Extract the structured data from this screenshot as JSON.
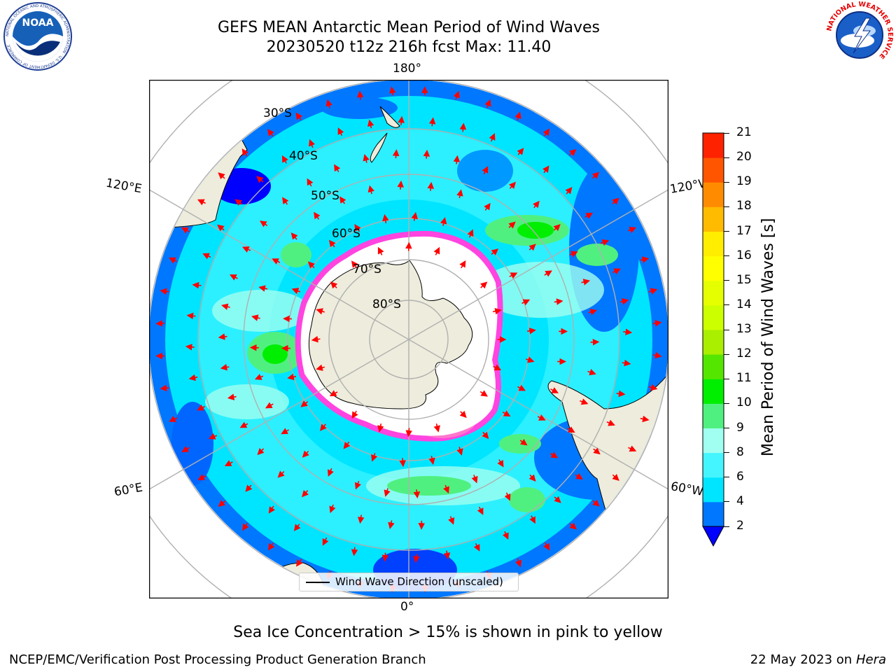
{
  "header": {
    "title_line1": "GEFS MEAN Antarctic Mean Period of Wind Waves",
    "title_line2": "20230520 t12z 216h fcst   Max: 11.40"
  },
  "logos": {
    "noaa_text": "NOAA",
    "noaa_ring": "NATIONAL OCEANIC AND ATMOSPHERIC ADMINISTRATION · U.S. DEPARTMENT OF COMMERCE",
    "nws_ring": "NATIONAL WEATHER SERVICE"
  },
  "map": {
    "longitude_labels": {
      "top": "180°",
      "bottom": "0°",
      "left_upper": "120°E",
      "left_lower": "60°E",
      "right_upper": "120°W",
      "right_lower": "60°W"
    },
    "latitude_labels": [
      "30°S",
      "40°S",
      "50°S",
      "60°S",
      "70°S",
      "80°S"
    ],
    "legend_label": "Wind Wave Direction (unscaled)",
    "colors": {
      "land": "#eeecdc",
      "ice": "#ffffff",
      "ice_edge": "#ff44e0",
      "vector": "#ff0000",
      "graticule": "#b0b0b0"
    }
  },
  "colorbar": {
    "label": "Mean Period of Wind Waves [s]",
    "ticks": [
      "2",
      "4",
      "6",
      "8",
      "9",
      "10",
      "11",
      "12",
      "13",
      "14",
      "15",
      "16",
      "17",
      "18",
      "19",
      "20",
      "21"
    ],
    "colors": [
      "#0077ff",
      "#00e5ff",
      "#44f5ff",
      "#a0fff0",
      "#50f080",
      "#00ee00",
      "#55e600",
      "#aaee00",
      "#ccff00",
      "#e6ff00",
      "#ffff00",
      "#ffee00",
      "#ffbb00",
      "#ff8c00",
      "#ff5500",
      "#ff2200",
      "#ff0000"
    ],
    "extend_color": "#0000ff"
  },
  "footer": {
    "note": "Sea Ice Concentration > 15% is shown in pink to yellow",
    "left": "NCEP/EMC/Verification Post Processing Product Generation Branch",
    "right_date": "22 May 2023 on",
    "right_host": "Hera"
  }
}
